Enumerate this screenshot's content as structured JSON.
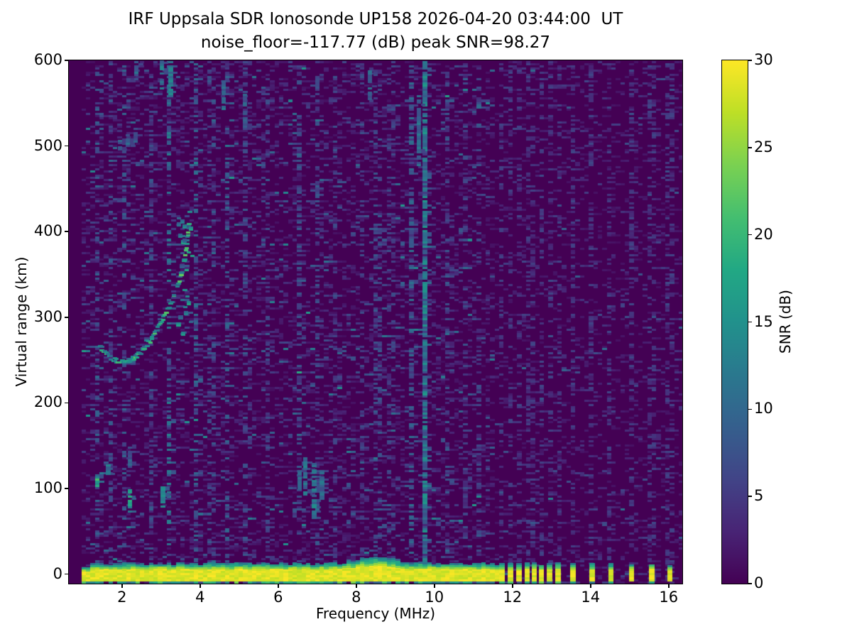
{
  "title": {
    "line1": "IRF Uppsala SDR Ionosonde UP158 2026-04-20 03:44:00  UT",
    "line2": "noise_floor=-117.77 (dB) peak SNR=98.27"
  },
  "axes": {
    "xlabel": "Frequency (MHz)",
    "ylabel": "Virtual range (km)",
    "xticks": [
      2,
      4,
      6,
      8,
      10,
      12,
      14,
      16
    ],
    "yticks": [
      0,
      100,
      200,
      300,
      400,
      500,
      600
    ],
    "xlim": [
      0.64,
      16.35
    ],
    "ylim": [
      -11,
      600
    ]
  },
  "colorbar": {
    "label": "SNR (dB)",
    "ticks": [
      0,
      5,
      10,
      15,
      20,
      25,
      30
    ],
    "vmin": 0,
    "vmax": 30,
    "colormap": "viridis"
  },
  "chart_data": {
    "type": "heatmap",
    "title": "IRF Uppsala SDR Ionosonde UP158 2026-04-20 03:44:00 UT",
    "subtitle": "noise_floor=-117.77 (dB) peak SNR=98.27",
    "station": "UP158",
    "timestamp_ut": "2026-04-20 03:44:00",
    "noise_floor_db": -117.77,
    "peak_snr_db": 98.27,
    "xlabel": "Frequency (MHz)",
    "ylabel": "Virtual range (km)",
    "xlim": [
      0.64,
      16.35
    ],
    "ylim": [
      -11,
      600
    ],
    "colormap": "viridis",
    "vmin": 0,
    "vmax": 30,
    "colorbar_label": "SNR (dB)",
    "freq_bin_mhz": 0.115,
    "range_bin_km": 2.5,
    "sweep": {
      "continuous_f_min": 1.02,
      "continuous_f_max": 11.64,
      "spot_frequencies_mhz": [
        11.73,
        11.95,
        12.17,
        12.38,
        12.56,
        12.74,
        12.95,
        13.17,
        13.55,
        14.04,
        14.52,
        15.05,
        15.57,
        16.03
      ]
    },
    "ground_pulse_band": {
      "yellow_km": [
        -7.5,
        6.5
      ],
      "green_tip_km": 16,
      "underside_km": -10,
      "hump_f_mhz": 8.45,
      "hump_sigma_mhz": 0.42,
      "hump_extra_km": 9
    },
    "ionospheric_echo_trace": [
      [
        1.45,
        265
      ],
      [
        1.6,
        256
      ],
      [
        1.75,
        251
      ],
      [
        1.9,
        248
      ],
      [
        2.05,
        247
      ],
      [
        2.2,
        249
      ],
      [
        2.35,
        253
      ],
      [
        2.5,
        259
      ],
      [
        2.65,
        267
      ],
      [
        2.8,
        277
      ],
      [
        2.95,
        289
      ],
      [
        3.1,
        302
      ],
      [
        3.25,
        316
      ],
      [
        3.4,
        331
      ],
      [
        3.5,
        345
      ],
      [
        3.58,
        361
      ],
      [
        3.64,
        378
      ],
      [
        3.69,
        396
      ],
      [
        3.73,
        415
      ]
    ],
    "echo_spread": {
      "f_min": 3.45,
      "f_max": 3.8,
      "km_min": 278,
      "km_max": 435,
      "count": 26,
      "snr_min": 8,
      "snr_max": 18
    },
    "echo_patches": [
      [
        1.37,
        103,
        114,
        20
      ],
      [
        1.65,
        117,
        127,
        13
      ],
      [
        2.2,
        73,
        101,
        17
      ],
      [
        2.2,
        125,
        150,
        9
      ],
      [
        3.05,
        79,
        102,
        15
      ],
      [
        6.55,
        100,
        125,
        10
      ],
      [
        6.7,
        93,
        136,
        12
      ],
      [
        6.92,
        66,
        130,
        13
      ],
      [
        7.12,
        88,
        122,
        11
      ],
      [
        3.25,
        558,
        600,
        14
      ],
      [
        2.37,
        578,
        600,
        11
      ],
      [
        3.02,
        565,
        600,
        12
      ],
      [
        4.6,
        543,
        577,
        11
      ],
      [
        5.15,
        520,
        562,
        9
      ],
      [
        8.35,
        552,
        588,
        10
      ],
      [
        9.6,
        478,
        560,
        11
      ],
      [
        1.95,
        496,
        508,
        9
      ],
      [
        2.15,
        500,
        514,
        10
      ],
      [
        2.35,
        505,
        520,
        9
      ]
    ],
    "interference_stripes": [
      {
        "f": 1.35,
        "strength": 8,
        "coverage": 0.3
      },
      {
        "f": 1.7,
        "strength": 7,
        "coverage": 0.28
      },
      {
        "f": 2.1,
        "strength": 8,
        "coverage": 0.32
      },
      {
        "f": 2.75,
        "strength": 7,
        "coverage": 0.28
      },
      {
        "f": 3.25,
        "strength": 11,
        "coverage": 0.4
      },
      {
        "f": 3.85,
        "strength": 9,
        "coverage": 0.33
      },
      {
        "f": 4.3,
        "strength": 7,
        "coverage": 0.27
      },
      {
        "f": 4.65,
        "strength": 8,
        "coverage": 0.3
      },
      {
        "f": 5.2,
        "strength": 7,
        "coverage": 0.28
      },
      {
        "f": 5.75,
        "strength": 6,
        "coverage": 0.24
      },
      {
        "f": 6.55,
        "strength": 7,
        "coverage": 0.27
      },
      {
        "f": 7.05,
        "strength": 7,
        "coverage": 0.26
      },
      {
        "f": 7.5,
        "strength": 6,
        "coverage": 0.22
      },
      {
        "f": 8.1,
        "strength": 6,
        "coverage": 0.26
      },
      {
        "f": 8.55,
        "strength": 7,
        "coverage": 0.26
      },
      {
        "f": 8.9,
        "strength": 6,
        "coverage": 0.22
      },
      {
        "f": 9.45,
        "strength": 9,
        "coverage": 0.45
      },
      {
        "f": 9.81,
        "strength": 13,
        "coverage": 0.85
      },
      {
        "f": 10.3,
        "strength": 7,
        "coverage": 0.3
      },
      {
        "f": 10.75,
        "strength": 6,
        "coverage": 0.24
      },
      {
        "f": 11.1,
        "strength": 6,
        "coverage": 0.22
      }
    ],
    "background_noise": {
      "probability": 0.42,
      "scale_db": 2.3,
      "right_probability": 0.3,
      "right_scale_db": 1.6,
      "split_f_mhz": 11.6
    }
  }
}
